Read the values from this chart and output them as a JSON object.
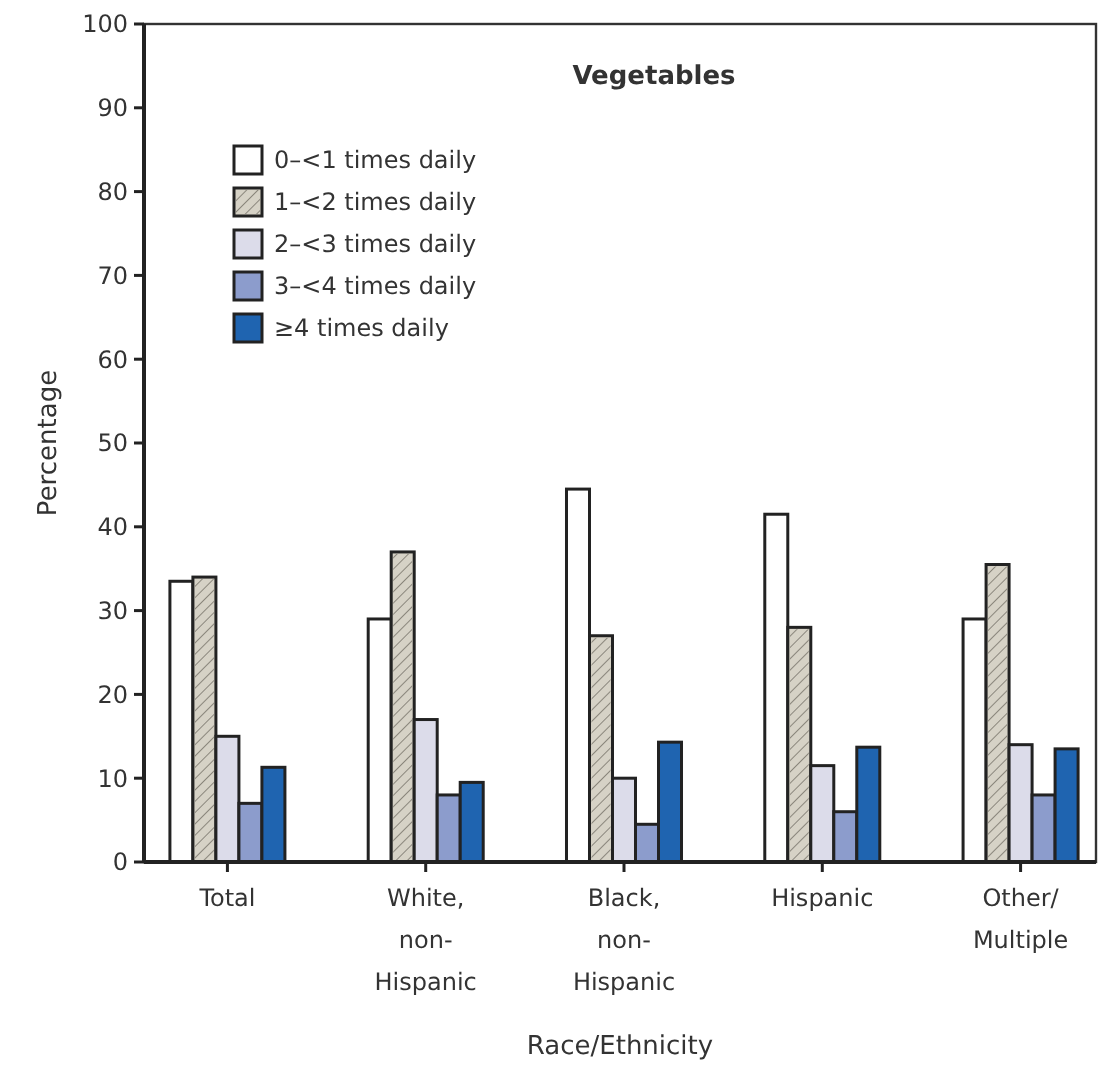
{
  "chart_data": {
    "type": "bar",
    "title": "Vegetables",
    "xlabel": "Race/Ethnicity",
    "ylabel": "Percentage",
    "categories": [
      "Total",
      "White, non-Hispanic",
      "Black, non-Hispanic",
      "Hispanic",
      "Other/Multiple"
    ],
    "series": [
      {
        "name": "0–<1 times daily",
        "color": "#ffffff",
        "values": [
          33.5,
          29,
          44.5,
          41.5,
          29
        ]
      },
      {
        "name": "1–<2 times daily",
        "color": "#d6d2c6",
        "values": [
          34,
          37,
          27,
          28,
          35.5
        ]
      },
      {
        "name": "2–<3 times daily",
        "color": "#dcdcea",
        "values": [
          15,
          17,
          10,
          11.5,
          14
        ]
      },
      {
        "name": "3–<4 times daily",
        "color": "#8c9ccc",
        "values": [
          7,
          8,
          4.5,
          6,
          8
        ]
      },
      {
        "name": "≥4 times daily",
        "color": "#1f64b0",
        "values": [
          11.3,
          9.5,
          14.3,
          13.7,
          13.5
        ]
      }
    ],
    "ylim": [
      0,
      100
    ],
    "yticks": [
      0,
      10,
      20,
      30,
      40,
      50,
      60,
      70,
      80,
      90,
      100
    ],
    "grid": false,
    "legend": "top left"
  }
}
